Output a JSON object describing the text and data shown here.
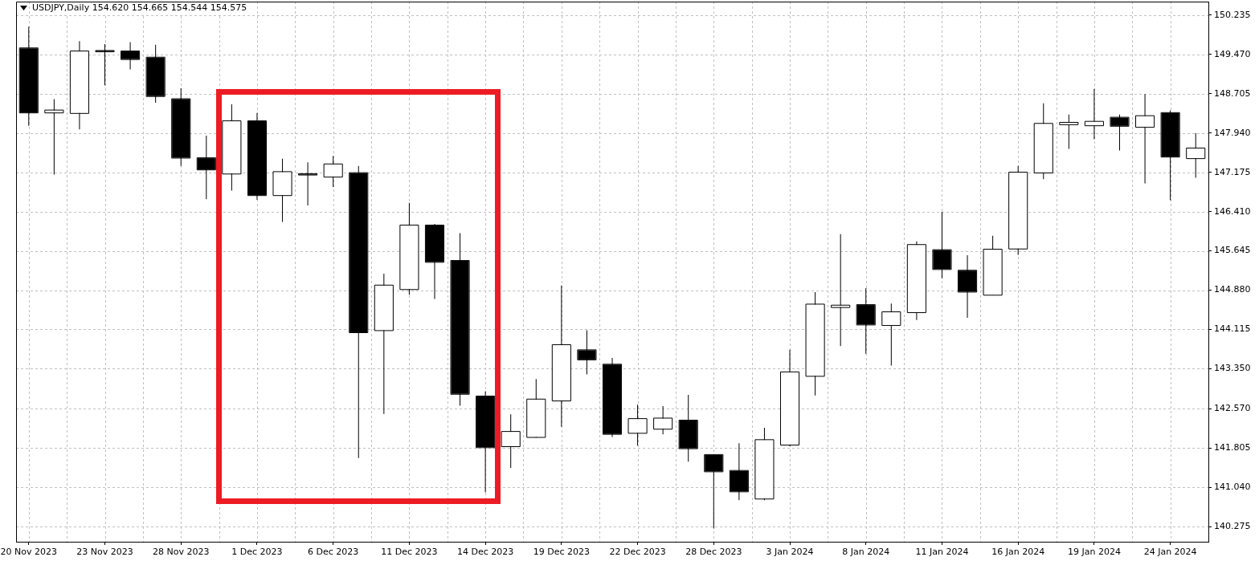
{
  "chart_data": {
    "type": "candlestick",
    "title": "USDJPY,Daily 154.620 154.665 154.544 154.575",
    "categories": [
      "20 Nov 2023",
      null,
      null,
      "23 Nov 2023",
      null,
      null,
      "28 Nov 2023",
      null,
      null,
      "1 Dec 2023",
      null,
      null,
      "6 Dec 2023",
      null,
      null,
      "11 Dec 2023",
      null,
      null,
      "14 Dec 2023",
      null,
      null,
      "19 Dec 2023",
      null,
      null,
      "22 Dec 2023",
      null,
      null,
      "28 Dec 2023",
      null,
      null,
      "3 Jan 2024",
      null,
      null,
      "8 Jan 2024",
      null,
      null,
      "11 Jan 2024",
      null,
      null,
      "16 Jan 2024",
      null,
      null,
      "19 Jan 2024",
      null,
      null,
      "24 Jan 2024",
      null
    ],
    "ohlc": [
      [
        149.59,
        150.01,
        148.08,
        148.34
      ],
      [
        148.34,
        148.6,
        147.13,
        148.38
      ],
      [
        148.33,
        149.73,
        148.01,
        149.53
      ],
      [
        149.54,
        149.67,
        148.87,
        149.53
      ],
      [
        149.53,
        149.71,
        149.18,
        149.38
      ],
      [
        149.41,
        149.66,
        148.53,
        148.66
      ],
      [
        148.6,
        148.81,
        147.3,
        147.46
      ],
      [
        147.45,
        147.89,
        146.65,
        147.23
      ],
      [
        147.15,
        148.5,
        146.82,
        148.17
      ],
      [
        148.17,
        148.33,
        146.64,
        146.73
      ],
      [
        146.73,
        147.44,
        146.21,
        147.18
      ],
      [
        147.14,
        147.37,
        146.53,
        147.13
      ],
      [
        147.09,
        147.49,
        146.89,
        147.33
      ],
      [
        147.16,
        147.3,
        141.61,
        144.06
      ],
      [
        144.1,
        145.2,
        142.47,
        144.97
      ],
      [
        144.9,
        146.58,
        144.79,
        146.14
      ],
      [
        146.14,
        146.17,
        144.71,
        145.43
      ],
      [
        145.45,
        145.99,
        142.63,
        142.86
      ],
      [
        142.81,
        142.91,
        140.94,
        141.82
      ],
      [
        141.84,
        142.46,
        141.42,
        142.12
      ],
      [
        142.02,
        143.15,
        142.01,
        142.75
      ],
      [
        142.73,
        144.97,
        142.22,
        143.81
      ],
      [
        143.71,
        144.1,
        143.24,
        143.53
      ],
      [
        143.43,
        143.56,
        142.02,
        142.08
      ],
      [
        142.1,
        142.65,
        141.85,
        142.37
      ],
      [
        142.18,
        142.62,
        142.07,
        142.38
      ],
      [
        142.34,
        142.84,
        141.54,
        141.8
      ],
      [
        141.67,
        141.67,
        140.24,
        141.35
      ],
      [
        141.36,
        141.9,
        140.79,
        140.96
      ],
      [
        140.82,
        142.2,
        140.79,
        141.96
      ],
      [
        141.87,
        143.72,
        141.84,
        143.28
      ],
      [
        143.21,
        144.84,
        142.83,
        144.6
      ],
      [
        144.55,
        145.97,
        143.79,
        144.58
      ],
      [
        144.59,
        144.92,
        143.64,
        144.21
      ],
      [
        144.2,
        144.62,
        143.41,
        144.45
      ],
      [
        144.45,
        145.83,
        144.3,
        145.76
      ],
      [
        145.66,
        146.41,
        145.11,
        145.29
      ],
      [
        145.26,
        145.56,
        144.34,
        144.85
      ],
      [
        144.79,
        145.94,
        144.79,
        145.67
      ],
      [
        145.69,
        147.3,
        145.57,
        147.17
      ],
      [
        147.17,
        148.52,
        147.04,
        148.12
      ],
      [
        148.11,
        148.3,
        147.63,
        148.14
      ],
      [
        148.09,
        148.8,
        147.82,
        148.16
      ],
      [
        148.24,
        148.3,
        147.6,
        148.08
      ],
      [
        148.06,
        148.7,
        146.96,
        148.27
      ],
      [
        148.33,
        148.38,
        146.63,
        147.48
      ],
      [
        147.45,
        147.94,
        147.07,
        147.64
      ]
    ],
    "color": "#000000",
    "colors": [
      "#000000",
      "#ffffff",
      "#ffffff",
      "#000000",
      "#000000",
      "#000000",
      "#000000",
      "#000000",
      "#ffffff",
      "#000000",
      "#ffffff",
      "#000000",
      "#ffffff",
      "#000000",
      "#ffffff",
      "#ffffff",
      "#000000",
      "#000000",
      "#000000",
      "#ffffff",
      "#ffffff",
      "#ffffff",
      "#000000",
      "#000000",
      "#ffffff",
      "#ffffff",
      "#000000",
      "#000000",
      "#000000",
      "#ffffff",
      "#ffffff",
      "#ffffff",
      "#ffffff",
      "#000000",
      "#ffffff",
      "#ffffff",
      "#000000",
      "#000000",
      "#ffffff",
      "#ffffff",
      "#ffffff",
      "#ffffff",
      "#ffffff",
      "#000000",
      "#ffffff",
      "#000000",
      "#ffffff"
    ],
    "ylim": [
      139.98,
      150.5
    ],
    "yticks": [
      140.275,
      {
        "value": 141.04,
        "label": "141.040"
      },
      141.805,
      {
        "value": 142.57,
        "label": "142.570"
      },
      {
        "value": 143.35,
        "label": "143.350"
      },
      144.115,
      {
        "value": 144.88,
        "label": "144.880"
      },
      145.645,
      {
        "value": 146.41,
        "label": "146.410"
      },
      147.175,
      {
        "value": 147.94,
        "label": "147.940"
      },
      148.705,
      {
        "value": 149.47,
        "label": "149.470"
      },
      150.235
    ],
    "grid": true
  }
}
